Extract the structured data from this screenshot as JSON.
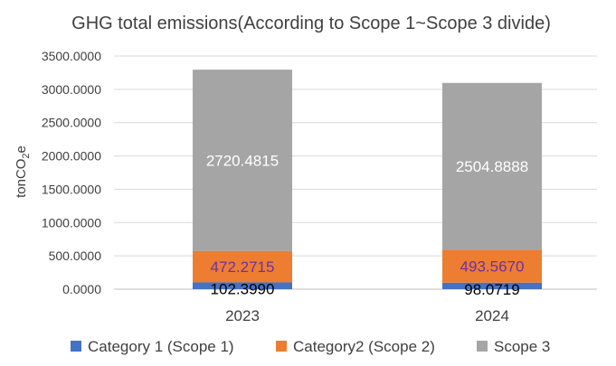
{
  "chart_data": {
    "type": "bar",
    "stacked": true,
    "title": "GHG total emissions(According to Scope 1~Scope 3 divide)",
    "xlabel": "",
    "ylabel": {
      "base": "tonCO",
      "subscript": "2",
      "suffix": "e"
    },
    "ylim": [
      0,
      3500
    ],
    "yticks": [
      "0.0000",
      "500.0000",
      "1000.0000",
      "1500.0000",
      "2000.0000",
      "2500.0000",
      "3000.0000",
      "3500.0000"
    ],
    "ytick_values": [
      0,
      500,
      1000,
      1500,
      2000,
      2500,
      3000,
      3500
    ],
    "grid": true,
    "legend_position": "bottom",
    "categories": [
      "2023",
      "2024"
    ],
    "series": [
      {
        "name": "Category 1 (Scope 1)",
        "color": "#4472C4",
        "values": [
          102.399,
          98.0719
        ],
        "labels": [
          "102.3990",
          "98.0719"
        ],
        "label_color": "#000000"
      },
      {
        "name": "Category2 (Scope 2)",
        "color": "#ED7D31",
        "values": [
          472.2715,
          493.567
        ],
        "labels": [
          "472.2715",
          "493.5670"
        ],
        "label_color": "#7030A0"
      },
      {
        "name": "Scope 3",
        "color": "#A5A5A5",
        "values": [
          2720.4815,
          2504.8888
        ],
        "labels": [
          "2720.4815",
          "2504.8888"
        ],
        "label_color": "#FFFFFF"
      }
    ]
  }
}
